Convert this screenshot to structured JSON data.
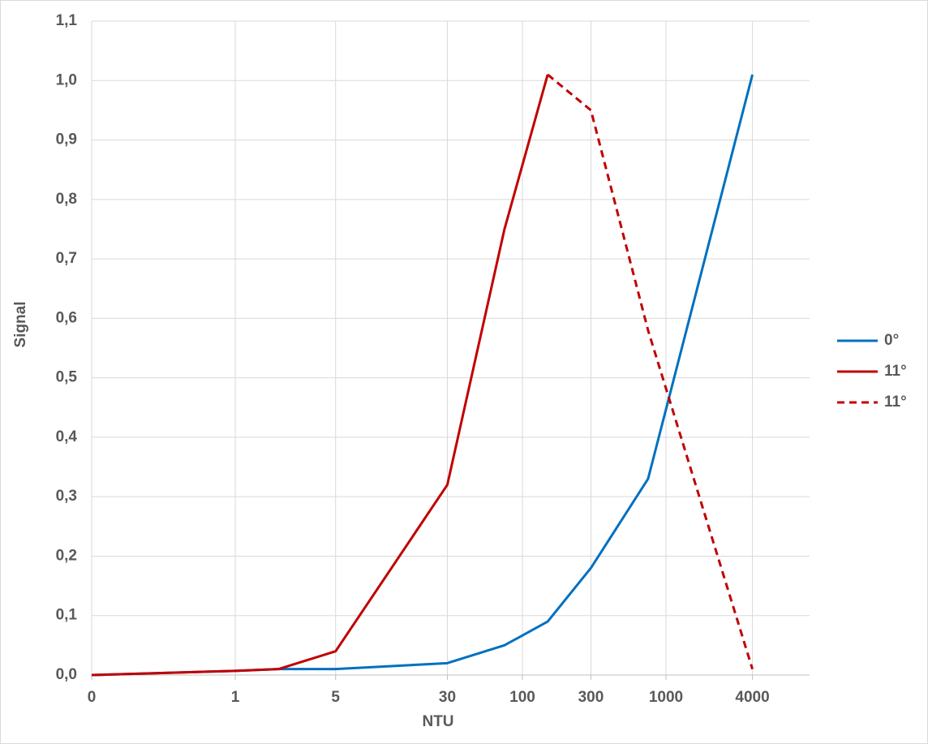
{
  "chart_data": {
    "type": "line",
    "x_label": "NTU",
    "y_label": "Signal",
    "x": [
      0.1,
      1,
      2,
      5,
      30,
      75,
      150,
      300,
      750,
      4000
    ],
    "xscale": "log",
    "xlim": [
      0.1,
      10000
    ],
    "xticks": [
      {
        "value": 0.1,
        "label": "0"
      },
      1,
      5,
      30,
      100,
      300,
      1000,
      4000
    ],
    "ylim": [
      0,
      1.1
    ],
    "yticks": [
      {
        "value": 0,
        "label": "0,0"
      },
      {
        "value": 0.1,
        "label": "0,1"
      },
      {
        "value": 0.2,
        "label": "0,2"
      },
      {
        "value": 0.3,
        "label": "0,3"
      },
      {
        "value": 0.4,
        "label": "0,4"
      },
      {
        "value": 0.5,
        "label": "0,5"
      },
      {
        "value": 0.6,
        "label": "0,6"
      },
      {
        "value": 0.7,
        "label": "0,7"
      },
      {
        "value": 0.8,
        "label": "0,8"
      },
      {
        "value": 0.9,
        "label": "0,9"
      },
      {
        "value": 1.0,
        "label": "1,0"
      },
      {
        "value": 1.1,
        "label": "1,1"
      }
    ],
    "grid": true,
    "legend": "right",
    "series": [
      {
        "name": "0°",
        "color": "#0070c0",
        "dashed": false,
        "values": [
          0,
          0.007,
          0.01,
          0.01,
          0.02,
          0.05,
          0.09,
          0.18,
          0.33,
          1.01
        ]
      },
      {
        "name": "11°",
        "color": "#c00000",
        "dashed": false,
        "values": [
          0,
          0.007,
          0.01,
          0.04,
          0.32,
          0.75,
          1.01,
          null,
          null,
          null
        ]
      },
      {
        "name": "11°",
        "color": "#c00000",
        "dashed": true,
        "values": [
          null,
          null,
          null,
          null,
          null,
          null,
          1.01,
          0.95,
          0.58,
          0.01
        ]
      }
    ]
  }
}
